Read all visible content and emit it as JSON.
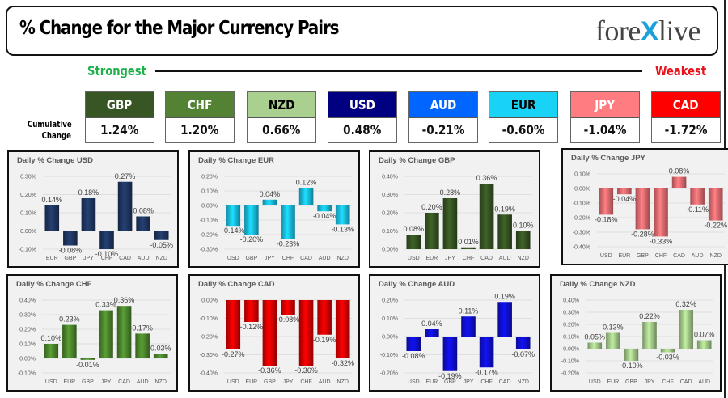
{
  "header": {
    "title": "% Change for the Major Currency Pairs",
    "logo_left": "fore",
    "logo_mark": "X",
    "logo_right": "live"
  },
  "ranking": {
    "strongest_label": "Strongest",
    "weakest_label": "Weakest",
    "row_label_line1": "Cumulative",
    "row_label_line2": "Change",
    "items": [
      {
        "currency": "GBP",
        "value": "1.24%",
        "color": "#375623",
        "text_color": "#ffffff"
      },
      {
        "currency": "CHF",
        "value": "1.20%",
        "color": "#548235",
        "text_color": "#ffffff"
      },
      {
        "currency": "NZD",
        "value": "0.66%",
        "color": "#a9d08e",
        "text_color": "#000000"
      },
      {
        "currency": "USD",
        "value": "0.48%",
        "color": "#000080",
        "text_color": "#ffffff"
      },
      {
        "currency": "AUD",
        "value": "-0.21%",
        "color": "#0066ff",
        "text_color": "#ffffff"
      },
      {
        "currency": "EUR",
        "value": "-0.60%",
        "color": "#19d3f7",
        "text_color": "#000000"
      },
      {
        "currency": "JPY",
        "value": "-1.04%",
        "color": "#ff7c80",
        "text_color": "#ffffff"
      },
      {
        "currency": "CAD",
        "value": "-1.72%",
        "color": "#ff0000",
        "text_color": "#ffffff"
      }
    ]
  },
  "chart_data": [
    {
      "type": "bar",
      "title": "Daily % Change USD",
      "categories": [
        "EUR",
        "GBP",
        "JPY",
        "CHF",
        "CAD",
        "AUD",
        "NZD"
      ],
      "values": [
        0.14,
        -0.08,
        0.18,
        -0.1,
        0.27,
        0.08,
        -0.05
      ],
      "labels": [
        "0.14%",
        "-0.08%",
        "0.18%",
        "-0.10%",
        "0.27%",
        "0.08%",
        "-0.05%"
      ],
      "yticks": [
        "0.30%",
        "0.20%",
        "0.10%",
        "0.00%",
        "-0.10%"
      ],
      "ylim": [
        -0.1,
        0.3
      ],
      "color": "#203864",
      "grid": true
    },
    {
      "type": "bar",
      "title": "Daily % Change EUR",
      "categories": [
        "USD",
        "GBP",
        "JPY",
        "CHF",
        "CAD",
        "AUD",
        "NZD"
      ],
      "values": [
        -0.14,
        -0.2,
        0.04,
        -0.23,
        0.12,
        -0.04,
        -0.13
      ],
      "labels": [
        "-0.14%",
        "-0.20%",
        "0.04%",
        "-0.23%",
        "0.12%",
        "-0.04%",
        "-0.13%"
      ],
      "yticks": [
        "0.20%",
        "0.10%",
        "0.00%",
        "-0.10%",
        "-0.20%",
        "-0.30%"
      ],
      "ylim": [
        -0.3,
        0.2
      ],
      "color": "#19c3eb",
      "grid": true
    },
    {
      "type": "bar",
      "title": "Daily % Change GBP",
      "categories": [
        "USD",
        "EUR",
        "JPY",
        "CHF",
        "CAD",
        "AUD",
        "NZD"
      ],
      "values": [
        0.08,
        0.2,
        0.28,
        0.01,
        0.36,
        0.19,
        0.1
      ],
      "labels": [
        "0.08%",
        "0.20%",
        "0.28%",
        "0.01%",
        "0.36%",
        "0.19%",
        "0.10%"
      ],
      "yticks": [
        "0.40%",
        "0.30%",
        "0.20%",
        "0.10%",
        "0.00%"
      ],
      "ylim": [
        0.0,
        0.4
      ],
      "color": "#375623",
      "grid": true
    },
    {
      "type": "bar",
      "title": "Daily % Change JPY",
      "categories": [
        "USD",
        "EUR",
        "GBP",
        "CHF",
        "CAD",
        "AUD",
        "NZD"
      ],
      "values": [
        -0.18,
        -0.04,
        -0.28,
        -0.33,
        0.08,
        -0.11,
        -0.22
      ],
      "labels": [
        "-0.18%",
        "-0.04%",
        "-0.28%",
        "-0.33%",
        "0.08%",
        "-0.11%",
        "-0.22%"
      ],
      "yticks": [
        "0.10%",
        "0.00%",
        "-0.10%",
        "-0.20%",
        "-0.30%",
        "-0.40%"
      ],
      "ylim": [
        -0.4,
        0.1
      ],
      "color": "#ee6f74",
      "grid": true
    },
    {
      "type": "bar",
      "title": "Daily % Change CHF",
      "categories": [
        "USD",
        "EUR",
        "GBP",
        "JPY",
        "CAD",
        "AUD",
        "NZD"
      ],
      "values": [
        0.1,
        0.23,
        -0.01,
        0.33,
        0.36,
        0.17,
        0.03
      ],
      "labels": [
        "0.10%",
        "0.23%",
        "-0.01%",
        "0.33%",
        "0.36%",
        "0.17%",
        "0.03%"
      ],
      "yticks": [
        "0.40%",
        "0.30%",
        "0.20%",
        "0.10%",
        "0.00%",
        "-0.10%"
      ],
      "ylim": [
        -0.1,
        0.4
      ],
      "color": "#4e8a2e",
      "grid": true
    },
    {
      "type": "bar",
      "title": "Daily % Change CAD",
      "categories": [
        "USD",
        "EUR",
        "GBP",
        "JPY",
        "CHF",
        "AUD",
        "NZD"
      ],
      "values": [
        -0.27,
        -0.12,
        -0.36,
        -0.08,
        -0.36,
        -0.19,
        -0.32
      ],
      "labels": [
        "-0.27%",
        "-0.12%",
        "-0.36%",
        "-0.08%",
        "-0.36%",
        "-0.19%",
        "-0.32%"
      ],
      "yticks": [
        "0.00%",
        "-0.10%",
        "-0.20%",
        "-0.30%",
        "-0.40%"
      ],
      "ylim": [
        -0.4,
        0.0
      ],
      "color": "#e00000",
      "grid": true
    },
    {
      "type": "bar",
      "title": "Daily % Change AUD",
      "categories": [
        "USD",
        "EUR",
        "GBP",
        "JPY",
        "CHF",
        "CAD",
        "NZD"
      ],
      "values": [
        -0.08,
        0.04,
        -0.19,
        0.11,
        -0.17,
        0.19,
        -0.07
      ],
      "labels": [
        "-0.08%",
        "0.04%",
        "-0.19%",
        "0.11%",
        "-0.17%",
        "0.19%",
        "-0.07%"
      ],
      "yticks": [
        "0.20%",
        "0.10%",
        "0.00%",
        "-0.10%",
        "-0.20%"
      ],
      "ylim": [
        -0.2,
        0.2
      ],
      "color": "#1010d8",
      "grid": true
    },
    {
      "type": "bar",
      "title": "Daily % Change NZD",
      "categories": [
        "USD",
        "EUR",
        "GBP",
        "JPY",
        "CHF",
        "CAD",
        "AUD"
      ],
      "values": [
        0.05,
        0.13,
        -0.1,
        0.22,
        -0.03,
        0.32,
        0.07
      ],
      "labels": [
        "0.05%",
        "0.13%",
        "-0.10%",
        "0.22%",
        "-0.03%",
        "0.32%",
        "0.07%"
      ],
      "yticks": [
        "0.40%",
        "0.30%",
        "0.20%",
        "0.10%",
        "0.00%",
        "-0.10%",
        "-0.20%"
      ],
      "ylim": [
        -0.2,
        0.4
      ],
      "color": "#a9d08e",
      "grid": true
    }
  ]
}
